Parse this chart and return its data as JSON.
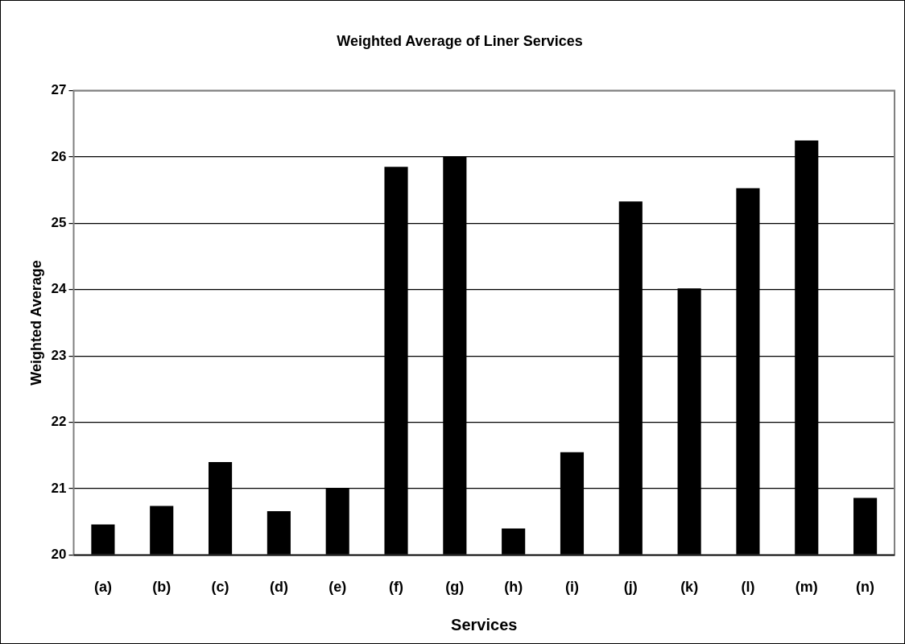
{
  "chart_data": {
    "type": "bar",
    "title": "Weighted Average of Liner Services",
    "xlabel": "Services",
    "ylabel": "Weighted Average",
    "categories": [
      "(a)",
      "(b)",
      "(c)",
      "(d)",
      "(e)",
      "(f)",
      "(g)",
      "(h)",
      "(i)",
      "(j)",
      "(k)",
      "(l)",
      "(m)",
      "(n)"
    ],
    "values": [
      20.46,
      20.74,
      21.4,
      20.66,
      21.0,
      25.85,
      26.0,
      20.4,
      21.55,
      25.33,
      24.02,
      25.53,
      26.25,
      20.86
    ],
    "color": "#000000",
    "ylim": [
      20,
      27
    ],
    "yticks": [
      20,
      21,
      22,
      23,
      24,
      25,
      26,
      27
    ],
    "grid": "y",
    "legend": false
  }
}
